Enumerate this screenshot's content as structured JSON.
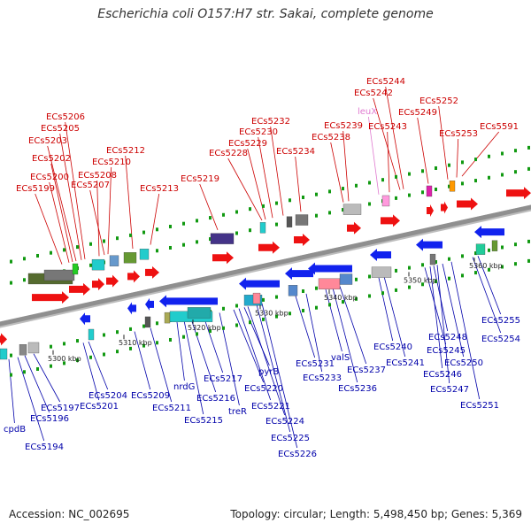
{
  "title": "Escherichia coli O157:H7 str. Sakai, complete genome",
  "accession": "Accession: NC_002695",
  "summary": "Topology: circular; Length: 5,498,450 bp; Genes: 5,369",
  "colors": {
    "top_label": "#cc0000",
    "bottom_label": "#0000aa",
    "pseudo_label": "#e07ad0",
    "forward_gene": "#ee1111",
    "reverse_gene": "#1122ee",
    "backbone": "#8f8f8f",
    "tick": "#119911"
  },
  "ticks": [
    "5300 kbp",
    "5310 kbp",
    "5320 kbp",
    "5330 kbp",
    "5340 kbp",
    "5350 kbp",
    "5360 kbp"
  ],
  "top_labels": [
    "ECs5199",
    "ECs5200",
    "ECs5202",
    "ECs5203",
    "ECs5205",
    "ECs5206",
    "ECs5207",
    "ECs5208",
    "ECs5210",
    "ECs5212",
    "ECs5213",
    "ECs5219",
    "ECs5228",
    "ECs5229",
    "ECs5230",
    "ECs5232",
    "ECs5234",
    "ECs5238",
    "ECs5239",
    "leuX",
    "ECs5243",
    "ECs5242",
    "ECs5244",
    "ECs5249",
    "ECs5252",
    "ECs5253",
    "ECs5591"
  ],
  "bottom_labels": [
    "cpdB",
    "ECs5194",
    "ECs5196",
    "ECs5197",
    "ECs5201",
    "ECs5204",
    "ECs5209",
    "ECs5211",
    "nrdG",
    "ECs5215",
    "ECs5216",
    "ECs5217",
    "treR",
    "ECs5220",
    "pyrB",
    "ECs5221",
    "ECs5224",
    "ECs5225",
    "ECs5226",
    "ECs5231",
    "ECs5233",
    "valS",
    "ECs5236",
    "ECs5237",
    "ECs5240",
    "ECs5241",
    "ECs5245",
    "ECs5246",
    "ECs5247",
    "ECs5248",
    "ECs5250",
    "ECs5251",
    "ECs5254",
    "ECs5255"
  ]
}
